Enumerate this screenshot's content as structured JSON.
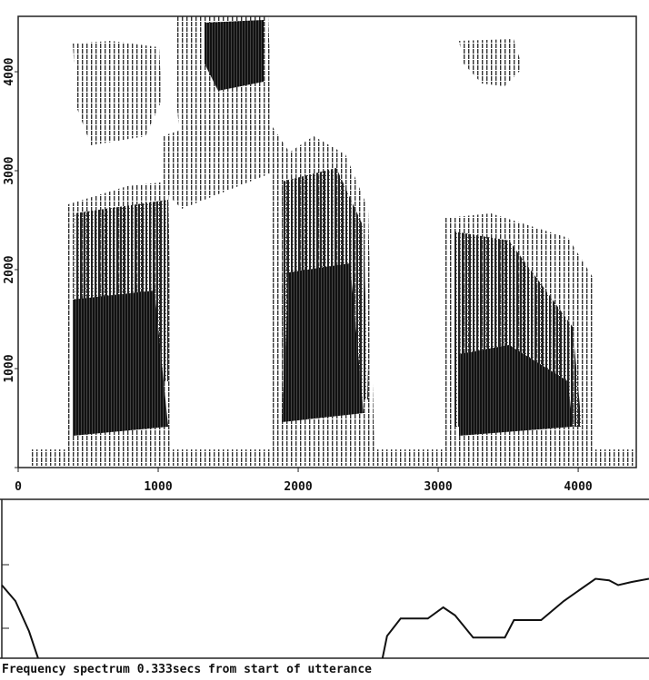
{
  "chart_data": [
    {
      "type": "spectrogram",
      "xlim": [
        0,
        4415
      ],
      "ylim": [
        0,
        4560
      ],
      "xticks": [
        0,
        1000,
        2000,
        3000,
        4000
      ],
      "yticks": [
        0,
        1000,
        2000,
        3000,
        4000
      ]
    },
    {
      "type": "line",
      "x": [
        0,
        15,
        30,
        40,
        null,
        420,
        425,
        440,
        470,
        487,
        500,
        520,
        555,
        565,
        595,
        620,
        655,
        670,
        680,
        695,
        714
      ],
      "values": [
        46,
        36,
        17,
        0,
        null,
        0,
        14,
        25,
        25,
        32,
        27,
        13,
        13,
        24,
        24,
        36,
        50,
        49,
        46,
        48,
        50
      ],
      "xlim": [
        0,
        714
      ],
      "ylim": [
        0,
        100
      ]
    }
  ],
  "caption": "Frequency spectrum 0.333secs from start of utterance"
}
